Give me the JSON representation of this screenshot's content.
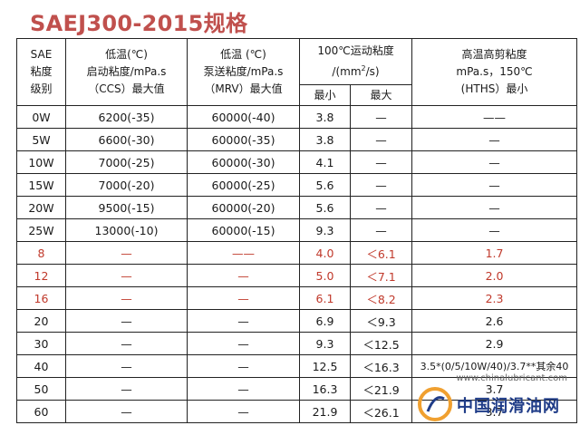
{
  "title": "SAEJ300-2015规格",
  "header": {
    "sae": [
      "SAE",
      "粘度",
      "级别"
    ],
    "ccs": [
      "低温(℃)",
      "启动粘度/mPa.s",
      "（CCS）最大值"
    ],
    "mrv": [
      "低温 (℃)",
      "泵送粘度/mPa.s",
      "（MRV）最大值"
    ],
    "kv": [
      "100℃运动粘度",
      "/(mm²/s)"
    ],
    "kv_min": "最小",
    "kv_max": "最大",
    "hths": [
      "高温高剪粘度",
      "mPa.s，150℃",
      "(HTHS）最小"
    ]
  },
  "rows": [
    {
      "grade": "0W",
      "ccs": "6200(-35)",
      "mrv": "60000(-40)",
      "kv_min": "3.8",
      "kv_max": "—",
      "hths": "——"
    },
    {
      "grade": "5W",
      "ccs": "6600(-30)",
      "mrv": "60000(-35)",
      "kv_min": "3.8",
      "kv_max": "—",
      "hths": "—"
    },
    {
      "grade": "10W",
      "ccs": "7000(-25)",
      "mrv": "60000(-30)",
      "kv_min": "4.1",
      "kv_max": "—",
      "hths": "—"
    },
    {
      "grade": "15W",
      "ccs": "7000(-20)",
      "mrv": "60000(-25)",
      "kv_min": "5.6",
      "kv_max": "—",
      "hths": "—"
    },
    {
      "grade": "20W",
      "ccs": "9500(-15)",
      "mrv": "60000(-20)",
      "kv_min": "5.6",
      "kv_max": "—",
      "hths": "—"
    },
    {
      "grade": "25W",
      "ccs": "13000(-10)",
      "mrv": "60000(-15)",
      "kv_min": "9.3",
      "kv_max": "—",
      "hths": "—"
    },
    {
      "grade": "8",
      "ccs": "—",
      "mrv": "——",
      "kv_min": "4.0",
      "kv_max": "＜6.1",
      "hths": "1.7",
      "red": true
    },
    {
      "grade": "12",
      "ccs": "—",
      "mrv": "—",
      "kv_min": "5.0",
      "kv_max": "＜7.1",
      "hths": "2.0",
      "red": true
    },
    {
      "grade": "16",
      "ccs": "—",
      "mrv": "—",
      "kv_min": "6.1",
      "kv_max": "＜8.2",
      "hths": "2.3",
      "red": true
    },
    {
      "grade": "20",
      "ccs": "—",
      "mrv": "—",
      "kv_min": "6.9",
      "kv_max": "＜9.3",
      "hths": "2.6"
    },
    {
      "grade": "30",
      "ccs": "—",
      "mrv": "—",
      "kv_min": "9.3",
      "kv_max": "＜12.5",
      "hths": "2.9"
    },
    {
      "grade": "40",
      "ccs": "—",
      "mrv": "—",
      "kv_min": "12.5",
      "kv_max": "＜16.3",
      "hths": "3.5*(0/5/10W/40)/3.7**其余40"
    },
    {
      "grade": "50",
      "ccs": "—",
      "mrv": "—",
      "kv_min": "16.3",
      "kv_max": "＜21.9",
      "hths": "3.7"
    },
    {
      "grade": "60",
      "ccs": "—",
      "mrv": "—",
      "kv_min": "21.9",
      "kv_max": "＜26.1",
      "hths": "3.7"
    }
  ],
  "watermark": {
    "url": "www.chinalubricant.com",
    "name": "中国润滑油网",
    "logo_color": "#f0a030",
    "name_color": "#1f3c88"
  }
}
